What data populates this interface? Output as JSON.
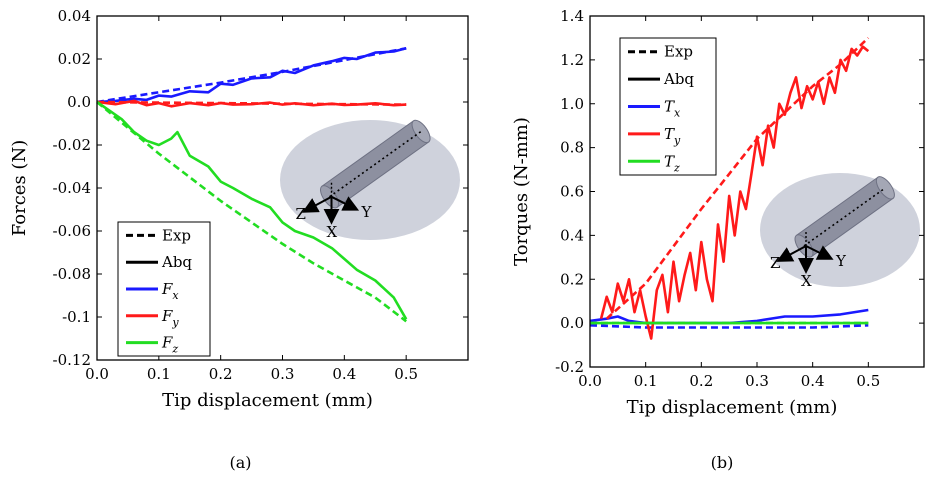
{
  "chart_data": [
    {
      "type": "line",
      "caption": "(a)",
      "xlabel": "Tip displacement (mm)",
      "ylabel": "Forces (N)",
      "xlim": [
        0,
        0.6
      ],
      "ylim": [
        -0.12,
        0.04
      ],
      "xticks": [
        "0.0",
        "0.1",
        "0.2",
        "0.3",
        "0.4",
        "0.5"
      ],
      "yticks": [
        "0.04",
        "0.02",
        "0.0",
        "-0.02",
        "-0.04",
        "-0.06",
        "-0.08",
        "-0.1",
        "-0.12"
      ],
      "legend": {
        "placement": "bottom-left",
        "entries": [
          "Exp",
          "Abq",
          "F_x",
          "F_y",
          "F_z"
        ]
      },
      "inset_axes": [
        "Z",
        "X",
        "Y"
      ],
      "series": [
        {
          "name": "F_x",
          "kind": "Exp",
          "color": "#1a1aff",
          "dashed": true,
          "x": [
            0,
            0.1,
            0.2,
            0.3,
            0.4,
            0.5
          ],
          "y": [
            0,
            0.0045,
            0.009,
            0.014,
            0.0195,
            0.025
          ]
        },
        {
          "name": "F_x",
          "kind": "Abq",
          "color": "#1a1aff",
          "dashed": false,
          "x": [
            0,
            0.03,
            0.06,
            0.08,
            0.1,
            0.12,
            0.15,
            0.18,
            0.2,
            0.22,
            0.25,
            0.28,
            0.3,
            0.32,
            0.35,
            0.38,
            0.4,
            0.42,
            0.45,
            0.48,
            0.5
          ],
          "y": [
            0,
            0.0005,
            0.0015,
            0.001,
            0.003,
            0.0025,
            0.005,
            0.0045,
            0.0085,
            0.008,
            0.011,
            0.0115,
            0.0145,
            0.0135,
            0.017,
            0.019,
            0.0205,
            0.02,
            0.023,
            0.0235,
            0.025
          ]
        },
        {
          "name": "F_y",
          "kind": "Exp",
          "color": "#ff1a1a",
          "dashed": true,
          "x": [
            0,
            0.1,
            0.2,
            0.3,
            0.4,
            0.5
          ],
          "y": [
            0,
            -0.0003,
            -0.0005,
            -0.0008,
            -0.001,
            -0.0012
          ]
        },
        {
          "name": "F_y",
          "kind": "Abq",
          "color": "#ff1a1a",
          "dashed": false,
          "x": [
            0,
            0.03,
            0.06,
            0.08,
            0.1,
            0.12,
            0.15,
            0.18,
            0.2,
            0.22,
            0.25,
            0.28,
            0.3,
            0.32,
            0.35,
            0.38,
            0.4,
            0.42,
            0.45,
            0.48,
            0.5
          ],
          "y": [
            0,
            -0.001,
            0.0005,
            -0.0015,
            -0.0005,
            -0.002,
            -0.0005,
            -0.0015,
            -0.0005,
            -0.0012,
            -0.001,
            -0.0003,
            -0.0012,
            -0.0006,
            -0.0015,
            -0.0008,
            -0.0014,
            -0.0012,
            -0.0006,
            -0.0015,
            -0.0012
          ]
        },
        {
          "name": "F_z",
          "kind": "Exp",
          "color": "#22dd22",
          "dashed": true,
          "x": [
            0,
            0.05,
            0.1,
            0.15,
            0.2,
            0.25,
            0.3,
            0.35,
            0.4,
            0.45,
            0.5
          ],
          "y": [
            0,
            -0.012,
            -0.024,
            -0.035,
            -0.046,
            -0.056,
            -0.066,
            -0.075,
            -0.083,
            -0.091,
            -0.102
          ]
        },
        {
          "name": "F_z",
          "kind": "Abq",
          "color": "#22dd22",
          "dashed": false,
          "x": [
            0,
            0.02,
            0.04,
            0.06,
            0.08,
            0.1,
            0.12,
            0.13,
            0.15,
            0.18,
            0.2,
            0.22,
            0.25,
            0.28,
            0.3,
            0.32,
            0.35,
            0.38,
            0.4,
            0.42,
            0.45,
            0.48,
            0.5
          ],
          "y": [
            0,
            -0.004,
            -0.008,
            -0.014,
            -0.018,
            -0.02,
            -0.017,
            -0.014,
            -0.025,
            -0.03,
            -0.037,
            -0.04,
            -0.045,
            -0.049,
            -0.056,
            -0.06,
            -0.063,
            -0.068,
            -0.073,
            -0.078,
            -0.083,
            -0.091,
            -0.101
          ]
        }
      ]
    },
    {
      "type": "line",
      "caption": "(b)",
      "xlabel": "Tip displacement (mm)",
      "ylabel": "Torques (N-mm)",
      "xlim": [
        0,
        0.6
      ],
      "ylim": [
        -0.2,
        1.4
      ],
      "xticks": [
        "0.0",
        "0.1",
        "0.2",
        "0.3",
        "0.4",
        "0.5"
      ],
      "yticks": [
        "1.4",
        "1.2",
        "1.0",
        "0.8",
        "0.6",
        "0.4",
        "0.2",
        "0.0",
        "-0.2"
      ],
      "legend": {
        "placement": "top-left",
        "entries": [
          "Exp",
          "Abq",
          "T_x",
          "T_y",
          "T_z"
        ]
      },
      "inset_axes": [
        "Z",
        "X",
        "Y"
      ],
      "series": [
        {
          "name": "T_x",
          "kind": "Exp",
          "color": "#1a1aff",
          "dashed": true,
          "x": [
            0,
            0.1,
            0.2,
            0.3,
            0.4,
            0.5
          ],
          "y": [
            -0.01,
            -0.02,
            -0.02,
            -0.02,
            -0.02,
            -0.01
          ]
        },
        {
          "name": "T_x",
          "kind": "Abq",
          "color": "#1a1aff",
          "dashed": false,
          "x": [
            0,
            0.03,
            0.05,
            0.07,
            0.1,
            0.15,
            0.2,
            0.25,
            0.3,
            0.35,
            0.4,
            0.45,
            0.5
          ],
          "y": [
            0.01,
            0.02,
            0.03,
            0.01,
            0.0,
            0.0,
            0.0,
            0.0,
            0.01,
            0.03,
            0.03,
            0.04,
            0.06
          ]
        },
        {
          "name": "T_y",
          "kind": "Exp",
          "color": "#ff1a1a",
          "dashed": true,
          "x": [
            0.03,
            0.1,
            0.15,
            0.2,
            0.25,
            0.3,
            0.35,
            0.4,
            0.45,
            0.5
          ],
          "y": [
            0.02,
            0.18,
            0.35,
            0.52,
            0.68,
            0.84,
            0.96,
            1.08,
            1.18,
            1.3
          ]
        },
        {
          "name": "T_y",
          "kind": "Abq",
          "color": "#ff1a1a",
          "dashed": false,
          "x": [
            0.02,
            0.03,
            0.04,
            0.05,
            0.06,
            0.07,
            0.08,
            0.09,
            0.1,
            0.11,
            0.12,
            0.13,
            0.14,
            0.15,
            0.16,
            0.17,
            0.18,
            0.19,
            0.2,
            0.21,
            0.22,
            0.23,
            0.24,
            0.25,
            0.26,
            0.27,
            0.28,
            0.29,
            0.3,
            0.31,
            0.32,
            0.33,
            0.34,
            0.35,
            0.36,
            0.37,
            0.38,
            0.39,
            0.4,
            0.41,
            0.42,
            0.43,
            0.44,
            0.45,
            0.46,
            0.47,
            0.48,
            0.49,
            0.5
          ],
          "y": [
            0.02,
            0.12,
            0.05,
            0.18,
            0.1,
            0.2,
            0.05,
            0.15,
            0.03,
            -0.07,
            0.15,
            0.22,
            0.05,
            0.28,
            0.1,
            0.22,
            0.32,
            0.15,
            0.37,
            0.2,
            0.1,
            0.45,
            0.28,
            0.58,
            0.4,
            0.6,
            0.52,
            0.68,
            0.85,
            0.72,
            0.9,
            0.8,
            1.0,
            0.95,
            1.05,
            1.12,
            0.98,
            1.08,
            1.02,
            1.1,
            1.0,
            1.12,
            1.05,
            1.2,
            1.15,
            1.25,
            1.22,
            1.26,
            1.24
          ]
        },
        {
          "name": "T_z",
          "kind": "Exp",
          "color": "#22dd22",
          "dashed": true,
          "x": [
            0,
            0.1,
            0.2,
            0.3,
            0.4,
            0.5
          ],
          "y": [
            0.0,
            0.0,
            0.0,
            0.0,
            0.0,
            0.0
          ]
        },
        {
          "name": "T_z",
          "kind": "Abq",
          "color": "#22dd22",
          "dashed": false,
          "x": [
            0,
            0.1,
            0.2,
            0.3,
            0.4,
            0.5
          ],
          "y": [
            0.0,
            0.0,
            0.0,
            0.0,
            0.0,
            0.0
          ]
        }
      ]
    }
  ]
}
